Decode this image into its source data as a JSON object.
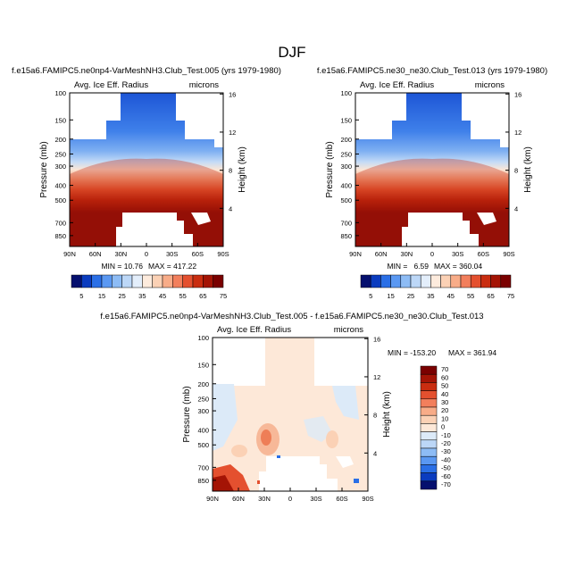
{
  "figure_title": "DJF",
  "chart_data": [
    {
      "type": "heatmap",
      "title": "f.e15a6.FAMIPC5.ne0np4-VarMeshNH3.Club_Test.005 (yrs 1979-1980)",
      "variable_label": "Avg. Ice Eff. Radius",
      "units_label": "microns",
      "ylabel": "Pressure (mb)",
      "y2label": "Height (km)",
      "x_ticks": [
        "90N",
        "60N",
        "30N",
        "0",
        "30S",
        "60S",
        "90S"
      ],
      "y_ticks": [
        "100",
        "150",
        "200",
        "250",
        "300",
        "400",
        "500",
        "700",
        "850"
      ],
      "y2_ticks": [
        "16",
        "12",
        "8",
        "4"
      ],
      "min_label": "MIN = 10.76",
      "max_label": "MAX = 417.22",
      "colorbar": {
        "labels": [
          "5",
          "15",
          "25",
          "35",
          "45",
          "55",
          "65",
          "75"
        ],
        "colors": [
          "#05106e",
          "#0b3cbf",
          "#2a6fe6",
          "#5a98f2",
          "#8dbcf5",
          "#bcd7f7",
          "#e3eefb",
          "#fdebdd",
          "#fbd1b5",
          "#f8ac88",
          "#f27f5c",
          "#e4502f",
          "#c92d10",
          "#a41405",
          "#7a0000"
        ]
      }
    },
    {
      "type": "heatmap",
      "title": "f.e15a6.FAMIPC5.ne30_ne30.Club_Test.013 (yrs 1979-1980)",
      "variable_label": "Avg. Ice Eff. Radius",
      "units_label": "microns",
      "ylabel": "Pressure (mb)",
      "y2label": "Height (km)",
      "x_ticks": [
        "90N",
        "60N",
        "30N",
        "0",
        "30S",
        "60S",
        "90S"
      ],
      "y_ticks": [
        "100",
        "150",
        "200",
        "250",
        "300",
        "400",
        "500",
        "700",
        "850"
      ],
      "y2_ticks": [
        "16",
        "12",
        "8",
        "4"
      ],
      "min_label": "MIN =   6.59",
      "max_label": "MAX = 360.04",
      "colorbar": {
        "labels": [
          "5",
          "15",
          "25",
          "35",
          "45",
          "55",
          "65",
          "75"
        ],
        "colors": [
          "#05106e",
          "#0b3cbf",
          "#2a6fe6",
          "#5a98f2",
          "#8dbcf5",
          "#bcd7f7",
          "#e3eefb",
          "#fdebdd",
          "#fbd1b5",
          "#f8ac88",
          "#f27f5c",
          "#e4502f",
          "#c92d10",
          "#a41405",
          "#7a0000"
        ]
      }
    },
    {
      "type": "heatmap",
      "title": "f.e15a6.FAMIPC5.ne0np4-VarMeshNH3.Club_Test.005 - f.e15a6.FAMIPC5.ne30_ne30.Club_Test.013",
      "variable_label": "Avg. Ice Eff. Radius",
      "units_label": "microns",
      "ylabel": "Pressure (mb)",
      "y2label": "Height (km)",
      "x_ticks": [
        "90N",
        "60N",
        "30N",
        "0",
        "30S",
        "60S",
        "90S"
      ],
      "y_ticks": [
        "100",
        "150",
        "200",
        "250",
        "300",
        "400",
        "500",
        "700",
        "850"
      ],
      "y2_ticks": [
        "16",
        "12",
        "8",
        "4"
      ],
      "min_label": "MIN = -153.20",
      "max_label": "MAX = 361.94",
      "colorbar": {
        "labels": [
          "70",
          "60",
          "50",
          "40",
          "30",
          "20",
          "10",
          "0",
          "-10",
          "-20",
          "-30",
          "-40",
          "-50",
          "-60",
          "-70"
        ],
        "colors": [
          "#7a0000",
          "#a41405",
          "#c92d10",
          "#e4502f",
          "#f27f5c",
          "#f8ac88",
          "#fbd1b5",
          "#fde8d8",
          "#dceaf8",
          "#bcd7f7",
          "#8dbcf5",
          "#5a98f2",
          "#2a6fe6",
          "#0b3cbf",
          "#05106e"
        ]
      }
    }
  ]
}
